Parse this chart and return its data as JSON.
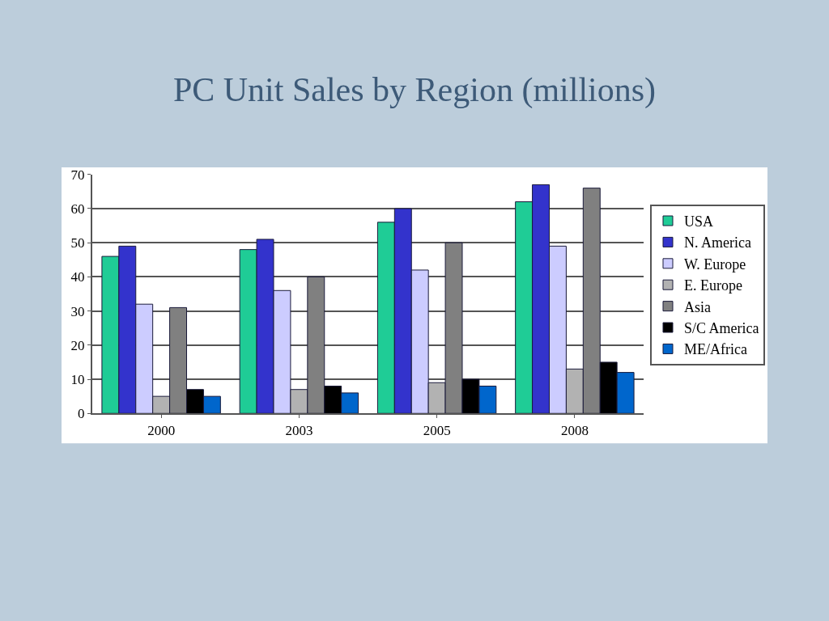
{
  "chart_data": {
    "type": "bar",
    "title": "PC Unit Sales by Region (millions)",
    "categories": [
      "2000",
      "2003",
      "2005",
      "2008"
    ],
    "series": [
      {
        "name": "USA",
        "color": "#1fcc96",
        "values": [
          46,
          48,
          56,
          62
        ]
      },
      {
        "name": "N. America",
        "color": "#3333cc",
        "values": [
          49,
          51,
          60,
          67
        ]
      },
      {
        "name": "W. Europe",
        "color": "#ccccff",
        "values": [
          32,
          36,
          42,
          49
        ]
      },
      {
        "name": "E. Europe",
        "color": "#b2b2b2",
        "values": [
          5,
          7,
          9,
          13
        ]
      },
      {
        "name": "Asia",
        "color": "#808080",
        "values": [
          31,
          40,
          50,
          66
        ]
      },
      {
        "name": "S/C America",
        "color": "#000000",
        "values": [
          7,
          8,
          10,
          15
        ]
      },
      {
        "name": "ME/Africa",
        "color": "#0066cc",
        "values": [
          5,
          6,
          8,
          12
        ]
      }
    ],
    "ylim": [
      0,
      70
    ],
    "yticks": [
      0,
      10,
      20,
      30,
      40,
      50,
      60,
      70
    ],
    "grid": "y",
    "legend": "right"
  }
}
